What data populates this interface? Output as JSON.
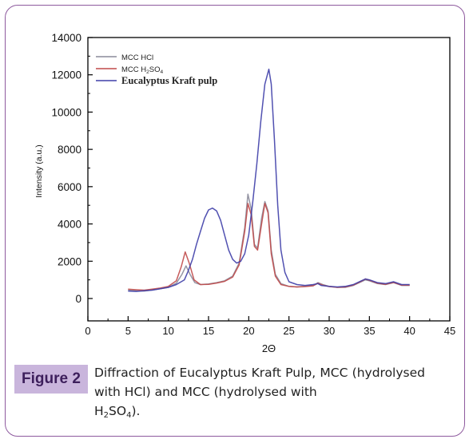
{
  "figure": {
    "label": "Figure 2",
    "caption_line1": "Diffraction of Eucalyptus Kraft Pulp, MCC (hydrolysed with HCl) and MCC (hydrolysed with",
    "caption_h": "H",
    "caption_sub2": "2",
    "caption_so": "SO",
    "caption_sub4": "4",
    "caption_end": ")."
  },
  "colors": {
    "frame": "#8e5a9e",
    "label_bg": "#c9b5dc",
    "label_text": "#3d1f5c"
  },
  "chart_data": {
    "type": "line",
    "xlabel": "2Θ",
    "ylabel": "Intensity (a.u.)",
    "xlim": [
      0,
      45
    ],
    "ylim": [
      -1200,
      14000
    ],
    "xticks": [
      "0",
      "5",
      "10",
      "15",
      "20",
      "25",
      "30",
      "35",
      "40",
      "45"
    ],
    "yticks": [
      "0",
      "2000",
      "4000",
      "6000",
      "8000",
      "10000",
      "12000",
      "14000"
    ],
    "legend_position": "top-left",
    "legend": [
      {
        "text": "MCC HCl"
      },
      {
        "text": "MCC H",
        "sub": "2",
        "text2": "SO",
        "sub2": "4"
      },
      {
        "text": "Eucalyptus Kraft pulp"
      }
    ],
    "series": [
      {
        "name": "MCC HCl",
        "color": "#8a8a9a",
        "x": [
          5,
          6,
          7,
          8,
          9,
          10,
          11,
          11.7,
          12.2,
          12.7,
          13.3,
          14,
          15,
          16,
          17,
          18,
          18.8,
          19.5,
          19.9,
          20.3,
          20.7,
          21.1,
          21.6,
          22,
          22.4,
          22.8,
          23.3,
          24,
          25,
          26,
          27,
          28,
          28.6,
          29.2,
          30,
          31,
          32,
          33,
          34,
          34.5,
          35,
          36,
          37,
          38,
          39,
          40
        ],
        "y": [
          450,
          420,
          400,
          460,
          520,
          600,
          820,
          1300,
          1750,
          1300,
          850,
          750,
          780,
          850,
          950,
          1200,
          1900,
          3800,
          5600,
          4800,
          2900,
          2700,
          4300,
          5200,
          4700,
          2600,
          1300,
          800,
          650,
          620,
          650,
          700,
          850,
          750,
          650,
          600,
          600,
          700,
          900,
          1000,
          950,
          800,
          750,
          850,
          700,
          700
        ]
      },
      {
        "name": "MCC H2SO4",
        "color": "#c04a4a",
        "x": [
          5,
          6,
          7,
          8,
          9,
          10,
          11,
          11.6,
          12.1,
          12.6,
          13.2,
          14,
          15,
          16,
          17,
          18,
          18.8,
          19.5,
          19.9,
          20.3,
          20.7,
          21.1,
          21.6,
          22,
          22.4,
          22.8,
          23.3,
          24,
          25,
          26,
          27,
          28,
          28.6,
          29.2,
          30,
          31,
          32,
          33,
          34,
          34.5,
          35,
          36,
          37,
          38,
          39,
          40
        ],
        "y": [
          500,
          470,
          450,
          500,
          560,
          650,
          950,
          1700,
          2500,
          1900,
          1000,
          750,
          760,
          830,
          920,
          1150,
          1800,
          3600,
          5100,
          4500,
          2800,
          2600,
          4000,
          5100,
          4600,
          2400,
          1200,
          750,
          650,
          620,
          640,
          680,
          820,
          720,
          640,
          600,
          620,
          720,
          930,
          1050,
          980,
          820,
          760,
          860,
          720,
          720
        ]
      },
      {
        "name": "Eucalyptus Kraft pulp",
        "color": "#3e3ea8",
        "x": [
          5,
          6,
          7,
          8,
          9,
          10,
          11,
          12,
          12.5,
          13,
          13.5,
          14,
          14.5,
          15,
          15.5,
          16,
          16.5,
          17,
          17.5,
          18,
          18.5,
          19,
          19.5,
          20,
          20.5,
          21,
          21.5,
          22,
          22.5,
          22.8,
          23.2,
          23.6,
          24,
          24.5,
          25,
          26,
          27,
          28,
          28.6,
          29,
          30,
          31,
          32,
          33,
          34,
          34.5,
          35,
          36,
          37,
          38,
          39,
          40
        ],
        "y": [
          400,
          380,
          420,
          450,
          520,
          600,
          750,
          1000,
          1500,
          2100,
          2900,
          3600,
          4300,
          4750,
          4850,
          4700,
          4200,
          3400,
          2600,
          2100,
          1900,
          2000,
          2400,
          3400,
          5200,
          7200,
          9500,
          11500,
          12300,
          11500,
          8500,
          5000,
          2600,
          1400,
          900,
          750,
          700,
          750,
          800,
          700,
          650,
          620,
          650,
          750,
          950,
          1050,
          1000,
          850,
          800,
          900,
          750,
          750
        ]
      }
    ]
  }
}
